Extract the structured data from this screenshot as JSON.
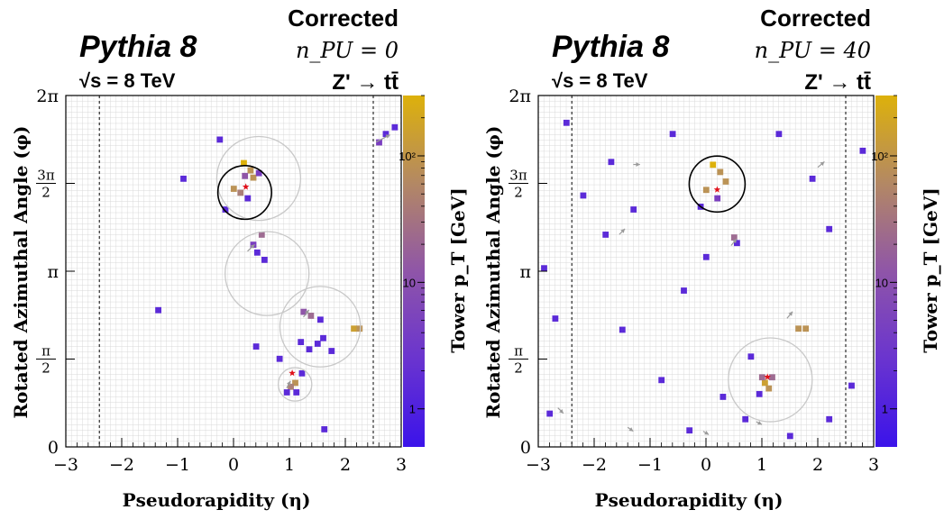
{
  "chart_data": [
    {
      "type": "heatmap",
      "generator": "Pythia 8",
      "energy": "√s = 8 TeV",
      "status": "Corrected",
      "pileup": "n_PU = 0",
      "process": "Z' → tt̄",
      "xlabel": "Pseudorapidity (η)",
      "ylabel": "Rotated Azimuthal Angle (φ)",
      "zlabel": "Tower p_T [GeV]",
      "xlim": [
        -3,
        3
      ],
      "ylim": [
        0,
        6.2832
      ],
      "x_ticks": [
        "−3",
        "−2",
        "−1",
        "0",
        "1",
        "2",
        "3"
      ],
      "y_ticks": [
        "0",
        "π/2",
        "π",
        "3π/2",
        "2π"
      ],
      "z_ticks": [
        "1",
        "10",
        "10²"
      ],
      "z_range": [
        0.5,
        300
      ],
      "z_scale": "log",
      "grid": true,
      "eta_boundaries": [
        -2.4,
        2.5
      ],
      "cells": [
        [
          0.18,
          5.08,
          150
        ],
        [
          0.3,
          4.95,
          60
        ],
        [
          0.35,
          4.82,
          40
        ],
        [
          0.12,
          4.55,
          35
        ],
        [
          0.0,
          4.62,
          60
        ],
        [
          0.2,
          4.85,
          8
        ],
        [
          0.45,
          4.9,
          3
        ],
        [
          0.25,
          4.45,
          2
        ],
        [
          -0.15,
          4.25,
          2
        ],
        [
          -0.25,
          5.5,
          2
        ],
        [
          -0.9,
          4.8,
          2
        ],
        [
          0.5,
          3.8,
          15
        ],
        [
          0.35,
          3.62,
          3
        ],
        [
          0.42,
          3.48,
          2
        ],
        [
          0.55,
          3.35,
          2
        ],
        [
          2.88,
          5.72,
          2
        ],
        [
          2.72,
          5.6,
          2
        ],
        [
          2.6,
          5.45,
          3
        ],
        [
          -1.35,
          2.45,
          2
        ],
        [
          1.25,
          2.42,
          5
        ],
        [
          1.38,
          2.35,
          15
        ],
        [
          1.55,
          2.28,
          2
        ],
        [
          2.15,
          2.12,
          80
        ],
        [
          2.25,
          2.12,
          60
        ],
        [
          1.5,
          1.85,
          2
        ],
        [
          1.35,
          1.75,
          2
        ],
        [
          1.2,
          1.88,
          2
        ],
        [
          1.6,
          1.95,
          2
        ],
        [
          1.75,
          1.72,
          2
        ],
        [
          0.4,
          1.8,
          2
        ],
        [
          0.82,
          1.58,
          2
        ],
        [
          1.1,
          1.15,
          60
        ],
        [
          1.02,
          1.08,
          25
        ],
        [
          0.95,
          0.98,
          2
        ],
        [
          1.12,
          0.98,
          2
        ],
        [
          1.62,
          0.32,
          2
        ],
        [
          1.22,
          1.32,
          2
        ]
      ],
      "jets": [
        {
          "eta": 0.45,
          "phi": 4.8,
          "r": 0.75,
          "color": "#c8c8c8"
        },
        {
          "eta": 0.2,
          "phi": 4.55,
          "r": 0.48,
          "color": "#000000"
        },
        {
          "eta": 0.6,
          "phi": 3.1,
          "r": 0.75,
          "color": "#c8c8c8"
        },
        {
          "eta": 1.55,
          "phi": 2.15,
          "r": 0.72,
          "color": "#c8c8c8"
        },
        {
          "eta": 1.1,
          "phi": 1.12,
          "r": 0.3,
          "color": "#c8c8c8"
        }
      ],
      "star_markers": [
        {
          "eta": 0.22,
          "phi": 4.65
        },
        {
          "eta": 1.05,
          "phi": 1.32
        }
      ],
      "arrows": [
        {
          "eta0": 0.25,
          "phi0": 3.5,
          "eta1": 0.38,
          "phi1": 3.62
        },
        {
          "eta0": 2.55,
          "phi0": 5.45,
          "eta1": 2.8,
          "phi1": 5.58
        },
        {
          "eta0": 1.25,
          "phi0": 2.32,
          "eta1": 1.35,
          "phi1": 2.45
        },
        {
          "eta0": 0.95,
          "phi0": 1.05,
          "eta1": 1.02,
          "phi1": 1.18
        }
      ]
    },
    {
      "type": "heatmap",
      "generator": "Pythia 8",
      "energy": "√s = 8 TeV",
      "status": "Corrected",
      "pileup": "n_PU = 40",
      "process": "Z' → tt̄",
      "xlabel": "Pseudorapidity (η)",
      "ylabel": "Rotated Azimuthal Angle (φ)",
      "zlabel": "Tower p_T [GeV]",
      "xlim": [
        -3,
        3
      ],
      "ylim": [
        0,
        6.2832
      ],
      "x_ticks": [
        "−3",
        "−2",
        "−1",
        "0",
        "1",
        "2",
        "3"
      ],
      "y_ticks": [
        "0",
        "π/2",
        "π",
        "3π/2",
        "2π"
      ],
      "z_ticks": [
        "1",
        "10",
        "10²"
      ],
      "z_range": [
        0.5,
        300
      ],
      "z_scale": "log",
      "grid": true,
      "eta_boundaries": [
        -2.4,
        2.5
      ],
      "cells": [
        [
          0.12,
          5.05,
          150
        ],
        [
          0.25,
          4.92,
          60
        ],
        [
          0.35,
          4.75,
          40
        ],
        [
          0.0,
          4.6,
          60
        ],
        [
          0.2,
          4.45,
          3
        ],
        [
          -0.1,
          4.3,
          2
        ],
        [
          0.5,
          3.75,
          15
        ],
        [
          0.55,
          3.65,
          2
        ],
        [
          1.05,
          1.15,
          80
        ],
        [
          1.12,
          1.05,
          40
        ],
        [
          1.0,
          1.25,
          15
        ],
        [
          1.18,
          1.25,
          10
        ],
        [
          0.95,
          0.95,
          2
        ],
        [
          1.65,
          2.12,
          60
        ],
        [
          1.78,
          2.12,
          40
        ],
        [
          0.8,
          1.62,
          2
        ],
        [
          -1.3,
          4.25,
          2
        ],
        [
          -2.5,
          5.8,
          2
        ],
        [
          -2.7,
          2.3,
          2
        ],
        [
          -2.8,
          0.6,
          2
        ],
        [
          -0.4,
          2.8,
          2
        ],
        [
          -0.8,
          1.2,
          2
        ],
        [
          2.2,
          3.9,
          2
        ],
        [
          2.6,
          1.1,
          2
        ],
        [
          1.3,
          5.6,
          2
        ],
        [
          -1.7,
          5.1,
          2
        ],
        [
          2.8,
          5.3,
          2
        ],
        [
          -2.2,
          4.5,
          2
        ],
        [
          -0.3,
          0.3,
          2
        ],
        [
          0.7,
          0.5,
          2
        ],
        [
          1.5,
          0.2,
          2
        ],
        [
          2.2,
          0.5,
          2
        ],
        [
          -1.8,
          3.8,
          2
        ],
        [
          -2.9,
          3.2,
          2
        ],
        [
          0.0,
          3.4,
          2
        ],
        [
          0.3,
          0.9,
          2
        ],
        [
          -1.5,
          2.1,
          2
        ],
        [
          1.9,
          4.8,
          2
        ],
        [
          -0.6,
          5.6,
          2
        ]
      ],
      "jets": [
        {
          "eta": 0.2,
          "phi": 4.7,
          "r": 0.5,
          "color": "#000000"
        },
        {
          "eta": 1.15,
          "phi": 1.2,
          "r": 0.75,
          "color": "#c8c8c8"
        }
      ],
      "star_markers": [
        {
          "eta": 0.2,
          "phi": 4.6
        },
        {
          "eta": 1.1,
          "phi": 1.25
        }
      ],
      "arrows": [
        {
          "eta0": 0.45,
          "phi0": 3.6,
          "eta1": 0.55,
          "phi1": 3.72
        },
        {
          "eta0": 1.45,
          "phi0": 2.3,
          "eta1": 1.55,
          "phi1": 2.42
        },
        {
          "eta0": -1.55,
          "phi0": 3.8,
          "eta1": -1.45,
          "phi1": 3.9
        },
        {
          "eta0": 2.0,
          "phi0": 5.0,
          "eta1": 2.12,
          "phi1": 5.1
        },
        {
          "eta0": -1.3,
          "phi0": 5.05,
          "eta1": -1.18,
          "phi1": 5.05
        },
        {
          "eta0": -2.65,
          "phi0": 0.7,
          "eta1": -2.55,
          "phi1": 0.6
        },
        {
          "eta0": -1.4,
          "phi0": 0.35,
          "eta1": -1.3,
          "phi1": 0.28
        },
        {
          "eta0": -0.05,
          "phi0": 0.28,
          "eta1": 0.05,
          "phi1": 0.22
        },
        {
          "eta0": 0.9,
          "phi0": 0.45,
          "eta1": 1.0,
          "phi1": 0.4
        }
      ]
    }
  ],
  "colors": {
    "palette": [
      "#3b13ea",
      "#5b2ad8",
      "#7a3dc0",
      "#8f55a8",
      "#9e6c92",
      "#aa8078",
      "#bb9356",
      "#cca133",
      "#ddb10b"
    ],
    "frame": "#000000",
    "grid": "#d9d9d9",
    "star": "#e0101a"
  }
}
